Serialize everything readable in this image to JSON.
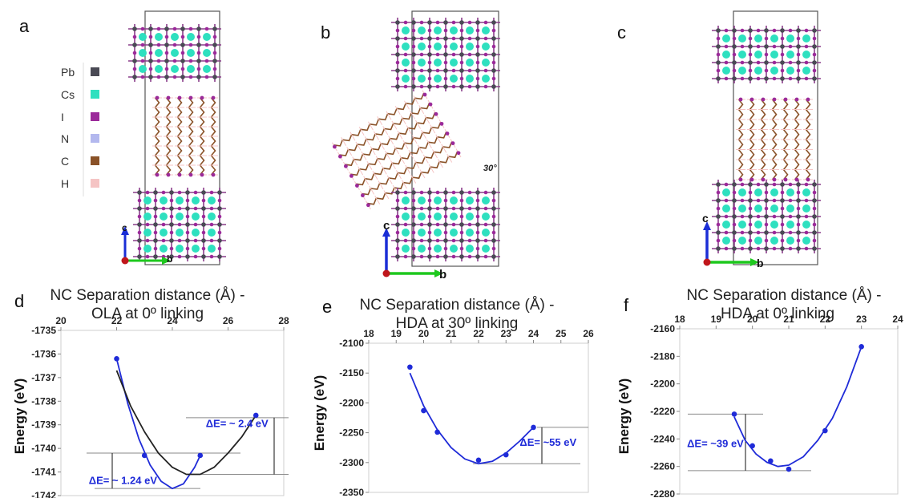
{
  "panels": {
    "top": [
      "a",
      "b",
      "c"
    ],
    "bottom": [
      "d",
      "e",
      "f"
    ]
  },
  "legend": {
    "items": [
      {
        "label": "Pb",
        "color": "#4a4a55"
      },
      {
        "label": "Cs",
        "color": "#2ee0bf"
      },
      {
        "label": "I",
        "color": "#9b2a9a"
      },
      {
        "label": "N",
        "color": "#b3b8ee"
      },
      {
        "label": "C",
        "color": "#8a5228"
      },
      {
        "label": "H",
        "color": "#f5c4c4"
      }
    ]
  },
  "structures": {
    "axis_c": "c",
    "axis_b": "b",
    "angle_label": "30°"
  },
  "chart_data": [
    {
      "type": "scatter",
      "title_lines": [
        "NC Separation distance (Å) -",
        "OLA at 0º linking"
      ],
      "ylabel": "Energy (eV)",
      "xlim": [
        20,
        28
      ],
      "xticks": [
        20,
        22,
        24,
        26,
        28
      ],
      "ylim": [
        -1742,
        -1735
      ],
      "yticks": [
        -1735,
        -1736,
        -1737,
        -1738,
        -1739,
        -1740,
        -1741,
        -1742
      ],
      "ytick_labels": [
        "-1735",
        "-1736",
        "-1737",
        "-1738",
        "-1739",
        "-1740",
        "-1741",
        "-1742"
      ],
      "series": [
        {
          "color": "#1f2bd8",
          "x": [
            22,
            23,
            25,
            27
          ],
          "y": [
            -1736.2,
            -1740.3,
            -1740.3,
            -1738.6
          ]
        }
      ],
      "fits": [
        {
          "color": "#1f2bd8",
          "x": [
            22,
            22.4,
            22.8,
            23.2,
            23.6,
            24.0,
            24.4,
            24.8,
            25.0
          ],
          "y": [
            -1736.2,
            -1738.1,
            -1739.6,
            -1740.7,
            -1741.4,
            -1741.7,
            -1741.5,
            -1740.8,
            -1740.3
          ]
        },
        {
          "color": "#222222",
          "x": [
            22,
            22.5,
            23,
            23.5,
            24,
            24.5,
            25,
            25.5,
            26,
            26.5,
            27
          ],
          "y": [
            -1736.7,
            -1738.2,
            -1739.3,
            -1740.2,
            -1740.8,
            -1741.1,
            -1741.1,
            -1740.8,
            -1740.2,
            -1739.5,
            -1738.6
          ]
        }
      ],
      "annotations": [
        {
          "text": "ΔE= ~ 2.4 eV",
          "x": 25.2,
          "y": -1739.1
        },
        {
          "text": "ΔE= ~ 1.24 eV",
          "x": 21.0,
          "y": -1741.5
        }
      ]
    },
    {
      "type": "scatter",
      "title_lines": [
        "NC Separation distance (Å) -",
        "HDA at 30º linking"
      ],
      "ylabel": "Energy (eV)",
      "xlim": [
        18,
        26
      ],
      "xticks": [
        18,
        19,
        20,
        21,
        22,
        23,
        24,
        25,
        26
      ],
      "ylim": [
        -2350,
        -2100
      ],
      "yticks": [
        -2100,
        -2150,
        -2200,
        -2250,
        -2300,
        -2350
      ],
      "ytick_labels": [
        "-2100",
        "-2150",
        "-2200",
        "-2250",
        "-2300",
        "-2350"
      ],
      "series": [
        {
          "color": "#1f2bd8",
          "x": [
            19.5,
            20,
            20.5,
            22,
            23,
            24
          ],
          "y": [
            -2140,
            -2213,
            -2249,
            -2296,
            -2287,
            -2241
          ]
        }
      ],
      "fits": [
        {
          "color": "#1f2bd8",
          "x": [
            19.5,
            20,
            20.5,
            21,
            21.5,
            22,
            22.5,
            23,
            23.5,
            24
          ],
          "y": [
            -2150,
            -2205,
            -2245,
            -2275,
            -2294,
            -2302,
            -2298,
            -2284,
            -2264,
            -2241
          ]
        }
      ],
      "annotations": [
        {
          "text": "ΔE= ~55 eV",
          "x": 23.5,
          "y": -2272
        }
      ]
    },
    {
      "type": "scatter",
      "title_lines": [
        "NC Separation distance (Å) -",
        "HDA at 0º linking"
      ],
      "ylabel": "Energy (eV)",
      "xlim": [
        18,
        24
      ],
      "xticks": [
        18,
        19,
        20,
        21,
        22,
        23,
        24
      ],
      "ylim": [
        -2280,
        -2160
      ],
      "yticks": [
        -2160,
        -2180,
        -2200,
        -2220,
        -2240,
        -2260,
        -2280
      ],
      "ytick_labels": [
        "-2160",
        "-2180",
        "-2200",
        "-2220",
        "-2240",
        "-2260",
        "-2280"
      ],
      "series": [
        {
          "color": "#1f2bd8",
          "x": [
            19.5,
            20,
            20.5,
            21,
            22,
            23
          ],
          "y": [
            -2222,
            -2245,
            -2256,
            -2262,
            -2234,
            -2173
          ]
        }
      ],
      "fits": [
        {
          "color": "#1f2bd8",
          "x": [
            19.5,
            19.8,
            20.1,
            20.4,
            20.7,
            21.0,
            21.4,
            21.8,
            22.2,
            22.6,
            23.0
          ],
          "y": [
            -2224,
            -2241,
            -2251,
            -2257,
            -2260,
            -2259,
            -2253,
            -2241,
            -2225,
            -2202,
            -2173
          ]
        }
      ],
      "annotations": [
        {
          "text": "ΔE= ~39 eV",
          "x": 18.2,
          "y": -2246
        }
      ]
    }
  ]
}
